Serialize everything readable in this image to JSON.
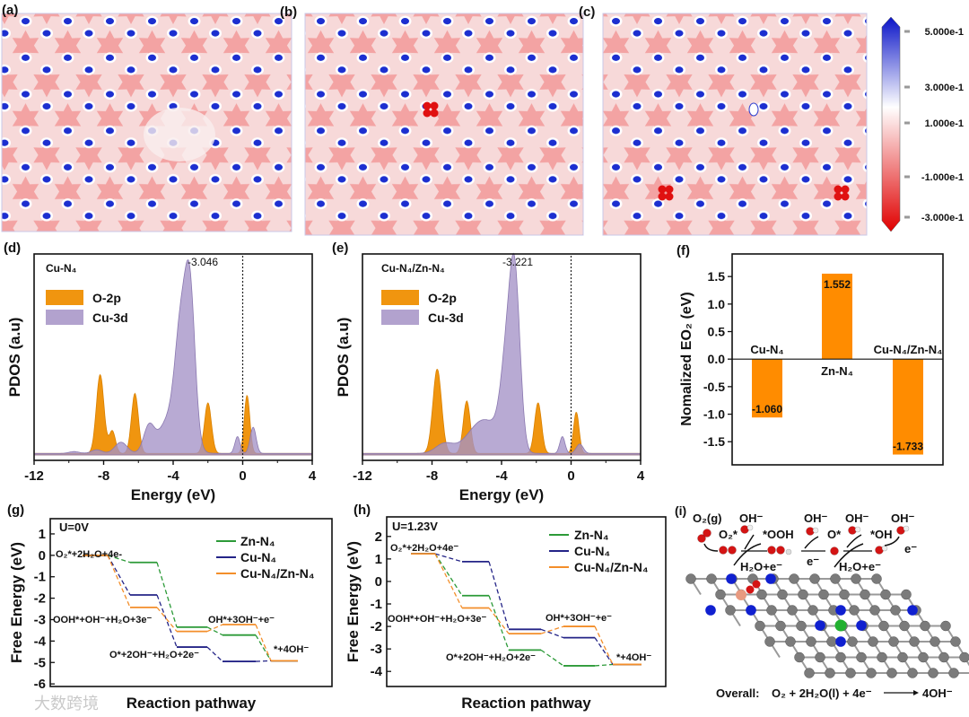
{
  "panel_labels": {
    "a": "(a)",
    "b": "(b)",
    "c": "(c)",
    "d": "(d)",
    "e": "(e)",
    "f": "(f)",
    "g": "(g)",
    "h": "(h)",
    "i": "(i)"
  },
  "colorbar": {
    "ticks": [
      "5.000e-1",
      "3.000e-1",
      "1.000e-1",
      "-1.000e-1",
      "-3.000e-1"
    ],
    "values": [
      0.5,
      0.3,
      0.1,
      -0.1,
      -0.3
    ],
    "colors": {
      "high": "#0a14c8",
      "mid": "#ffffff",
      "low": "#e00000"
    }
  },
  "maps": {
    "background": "#f7d9d9",
    "star": "#f3a3a3",
    "dot": "#1c2fd0",
    "defect": "#e01010"
  },
  "chart_data": [
    {
      "panel": "d",
      "type": "area",
      "title": "Cu-N₄",
      "xlabel": "Energy (eV)",
      "ylabel": "PDOS (a.u)",
      "xlim": [
        -12,
        4
      ],
      "xticks": [
        "-12",
        "-8",
        "-4",
        "0",
        "4"
      ],
      "xtick_values": [
        -12,
        -8,
        -4,
        0,
        4
      ],
      "fermi_line": 0,
      "peak_label": "-3.046",
      "series": [
        {
          "name": "O-2p",
          "color": "#f0950f",
          "peaks": [
            [
              -8.2,
              0.42,
              0.22
            ],
            [
              -7.5,
              0.12,
              0.18
            ],
            [
              -6.2,
              0.32,
              0.2
            ],
            [
              -2.0,
              0.27,
              0.2
            ],
            [
              0.25,
              0.31,
              0.16
            ]
          ]
        },
        {
          "name": "Cu-3d",
          "color": "#a492c6",
          "peaks": [
            [
              -3.046,
              0.83,
              0.3
            ],
            [
              -3.6,
              0.45,
              0.3
            ],
            [
              -4.0,
              0.22,
              0.7
            ],
            [
              -5.4,
              0.13,
              0.3
            ],
            [
              -7.0,
              0.06,
              0.35
            ],
            [
              -8.4,
              0.02,
              0.3
            ],
            [
              -0.3,
              0.09,
              0.15
            ],
            [
              0.6,
              0.14,
              0.17
            ],
            [
              -9.7,
              0.01,
              0.3
            ]
          ]
        }
      ]
    },
    {
      "panel": "e",
      "type": "area",
      "title": "Cu-N₄/Zn-N₄",
      "xlabel": "Energy (eV)",
      "ylabel": "PDOS (a.u)",
      "xlim": [
        -12,
        4
      ],
      "xticks": [
        "-12",
        "-8",
        "-4",
        "0",
        "4"
      ],
      "xtick_values": [
        -12,
        -8,
        -4,
        0,
        4
      ],
      "fermi_line": 0,
      "peak_label": "-3.221",
      "series": [
        {
          "name": "O-2p",
          "color": "#f0950f",
          "peaks": [
            [
              -7.7,
              0.45,
              0.25
            ],
            [
              -6.0,
              0.28,
              0.2
            ],
            [
              -1.9,
              0.27,
              0.2
            ],
            [
              0.3,
              0.22,
              0.16
            ]
          ]
        },
        {
          "name": "Cu-3d",
          "color": "#a492c6",
          "peaks": [
            [
              -3.221,
              0.83,
              0.3
            ],
            [
              -3.7,
              0.45,
              0.35
            ],
            [
              -5.0,
              0.18,
              0.9
            ],
            [
              -7.3,
              0.05,
              0.5
            ],
            [
              -0.5,
              0.09,
              0.15
            ],
            [
              0.5,
              0.05,
              0.2
            ]
          ]
        }
      ]
    },
    {
      "panel": "f",
      "type": "bar",
      "ylabel": "Nomalized EO₂ (eV)",
      "categories": [
        "Cu-N₄",
        "Zn-N₄",
        "Cu-N₄/Zn-N₄"
      ],
      "values": [
        -1.06,
        1.552,
        -1.733
      ],
      "value_labels": [
        "-1.060",
        "1.552",
        "-1.733"
      ],
      "ylim": [
        -1.92,
        1.91
      ],
      "yticks": [
        "1.5",
        "1.0",
        "0.5",
        "0.0",
        "-0.5",
        "-1.0",
        "-1.5"
      ],
      "ytick_values": [
        1.5,
        1.0,
        0.5,
        0.0,
        -0.5,
        -1.0,
        -1.5
      ],
      "color": "#ff8c00"
    },
    {
      "panel": "g",
      "type": "line",
      "title": "U=0V",
      "xlabel": "Reaction pathway",
      "ylabel": "Free Energy (eV)",
      "ylim": [
        -6.12,
        1.71
      ],
      "yticks": [
        "1",
        "0",
        "-1",
        "-2",
        "-3",
        "-4",
        "-5",
        "-6"
      ],
      "ytick_values": [
        1,
        0,
        -1,
        -2,
        -3,
        -4,
        -5,
        -6
      ],
      "steps": [
        "O₂*+2H₂O+4e-",
        "OOH*+OH⁻+H₂O+3e⁻",
        "O*+2OH⁻+H₂O+2e⁻",
        "OH*+3OH⁻+e⁻",
        "*+4OH⁻"
      ],
      "series": [
        {
          "name": "Zn-N₄",
          "color": "#2c9a38",
          "values": [
            0,
            -0.33,
            -3.35,
            -3.72,
            -4.92
          ]
        },
        {
          "name": "Cu-N₄",
          "color": "#242487",
          "values": [
            0,
            -1.85,
            -4.28,
            -4.95,
            -4.92
          ]
        },
        {
          "name": "Cu-N₄/Zn-N₄",
          "color": "#f38e2a",
          "values": [
            0,
            -2.43,
            -3.55,
            -3.23,
            -4.92
          ]
        }
      ]
    },
    {
      "panel": "h",
      "type": "line",
      "title": "U=1.23V",
      "xlabel": "Reaction pathway",
      "ylabel": "Free Energy (eV)",
      "ylim": [
        -4.67,
        2.87
      ],
      "yticks": [
        "2",
        "1",
        "0",
        "-1",
        "-2",
        "-3",
        "-4"
      ],
      "ytick_values": [
        2,
        1,
        0,
        -1,
        -2,
        -3,
        -4
      ],
      "steps": [
        "O₂*+2H₂O+4e⁻",
        "OOH*+OH⁻+H₂O+3e⁻",
        "O*+2OH⁻+H₂O+2e⁻",
        "OH*+3OH⁻+e⁻",
        "*+4OH⁻"
      ],
      "series": [
        {
          "name": "Zn-N₄",
          "color": "#2c9a38",
          "values": [
            1.23,
            -0.63,
            -3.05,
            -3.75,
            -3.69
          ]
        },
        {
          "name": "Cu-N₄",
          "color": "#242487",
          "values": [
            1.23,
            0.88,
            -2.13,
            -2.5,
            -3.69
          ]
        },
        {
          "name": "Cu-N₄/Zn-N₄",
          "color": "#f38e2a",
          "values": [
            1.23,
            -1.18,
            -2.32,
            -2.0,
            -3.69
          ]
        }
      ]
    }
  ],
  "scheme": {
    "o2g": "O₂(g)",
    "o2star": "O₂*",
    "ooh": "*OOH",
    "ostar": "O*",
    "oh": "*OH",
    "oh_minus": "OH⁻",
    "h2o_e": "H₂O+e⁻",
    "e_minus": "e⁻",
    "overall_prefix": "Overall:",
    "overall_reactants": "O₂ + 2H₂O(l) + 4e⁻",
    "overall_product": "4OH⁻"
  },
  "watermark": "大数跨境"
}
